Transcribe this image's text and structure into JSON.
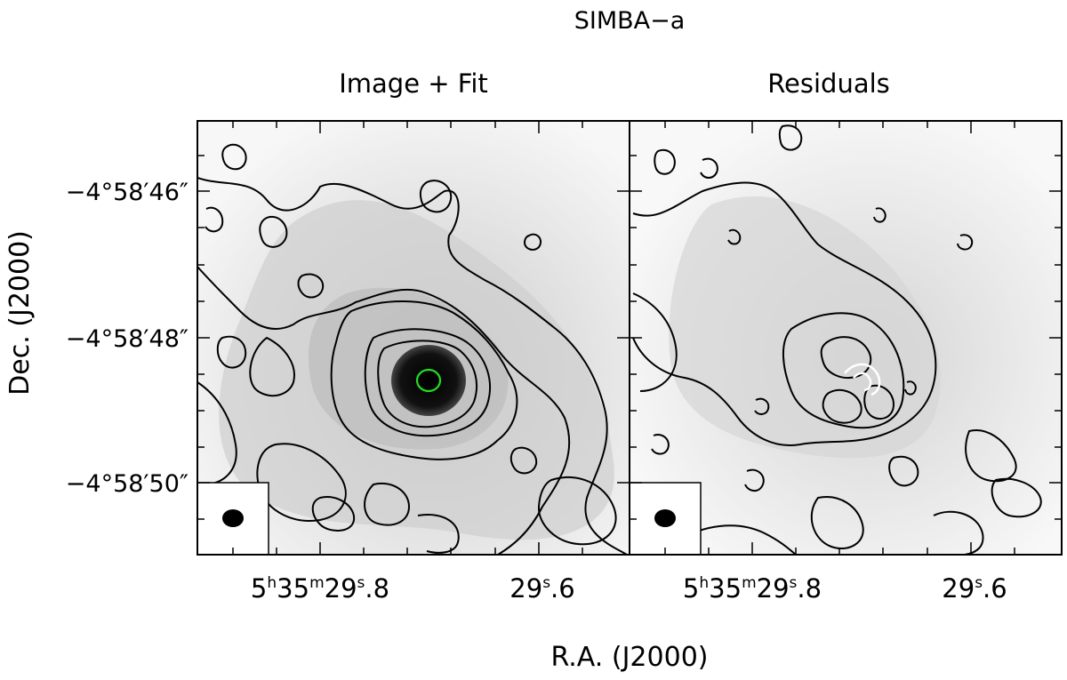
{
  "figure": {
    "title": "SIMBA−a",
    "xlabel": "R.A. (J2000)",
    "ylabel": "Dec. (J2000)"
  },
  "panels": [
    {
      "title": "Image + Fit",
      "xticks": [
        {
          "h": "5",
          "m": "35",
          "s": "29",
          "frac": ".8"
        },
        {
          "h": "",
          "m": "",
          "s": "29",
          "frac": ".6"
        }
      ],
      "yticks": [
        "−4°58′46″",
        "−4°58′48″",
        "−4°58′50″"
      ]
    },
    {
      "title": "Residuals",
      "xticks": [
        {
          "h": "5",
          "m": "35",
          "s": "29",
          "frac": ".8"
        },
        {
          "h": "",
          "m": "",
          "s": "29",
          "frac": ".6"
        }
      ],
      "yticks": []
    }
  ],
  "colors": {
    "contour": "#000000",
    "fit_ellipse": "#22dd22",
    "background": "#ffffff",
    "emission": "#d0d0d0"
  },
  "chart_data": [
    {
      "type": "heatmap",
      "title": "Image + Fit",
      "xlabel": "R.A. (J2000)",
      "ylabel": "Dec. (J2000)",
      "x_ticks": [
        "5h35m29.8s",
        "29.6s"
      ],
      "y_ticks": [
        "−4°58′46″",
        "−4°58′48″",
        "−4°58′50″"
      ],
      "features": [
        "grayscale continuum image",
        "black contours",
        "bright compact source with green fitted ellipse",
        "beam ellipse in lower-left box"
      ]
    },
    {
      "type": "heatmap",
      "title": "Residuals",
      "xlabel": "R.A. (J2000)",
      "x_ticks": [
        "5h35m29.8s",
        "29.6s"
      ],
      "features": [
        "grayscale residual image",
        "black contours",
        "white negative contours near center",
        "beam ellipse in lower-left box"
      ]
    }
  ]
}
